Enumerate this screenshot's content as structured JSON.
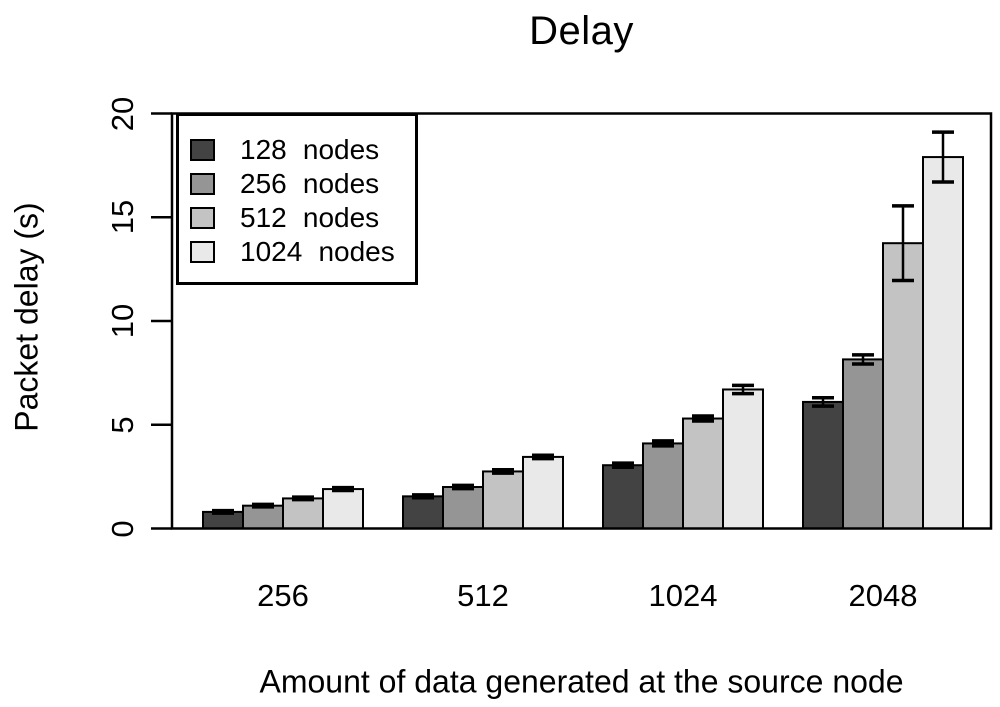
{
  "title": "Delay",
  "axes": {
    "y_label": "Packet delay (s)",
    "x_label": "Amount of data generated at the source node"
  },
  "legend": {
    "items": [
      {
        "label": "128 nodes",
        "color": "#434343"
      },
      {
        "label": "256 nodes",
        "color": "#959595"
      },
      {
        "label": "512 nodes",
        "color": "#c3c3c3"
      },
      {
        "label": "1024 nodes",
        "color": "#e9e9e9"
      }
    ]
  },
  "chart_data": {
    "type": "bar",
    "title": "Delay",
    "xlabel": "Amount of data generated at the source node",
    "ylabel": "Packet delay (s)",
    "categories": [
      "256",
      "512",
      "1024",
      "2048"
    ],
    "series": [
      {
        "name": "128 nodes",
        "color": "#434343",
        "values": [
          0.8,
          1.55,
          3.05,
          6.1
        ],
        "errors": [
          0.06,
          0.07,
          0.1,
          0.2
        ]
      },
      {
        "name": "256 nodes",
        "color": "#959595",
        "values": [
          1.1,
          2.0,
          4.1,
          8.15
        ],
        "errors": [
          0.06,
          0.08,
          0.12,
          0.22
        ]
      },
      {
        "name": "512 nodes",
        "color": "#c3c3c3",
        "values": [
          1.45,
          2.75,
          5.3,
          13.75
        ],
        "errors": [
          0.06,
          0.08,
          0.12,
          1.8
        ]
      },
      {
        "name": "1024 nodes",
        "color": "#e9e9e9",
        "values": [
          1.9,
          3.45,
          6.7,
          17.9
        ],
        "errors": [
          0.07,
          0.08,
          0.2,
          1.2
        ]
      }
    ],
    "ylim": [
      0,
      20
    ],
    "yticks": [
      0,
      5,
      10,
      15,
      20
    ],
    "grid": false,
    "error_bars": true,
    "legend_position": "top-left",
    "bar_outline_color": "#000000",
    "axis_color": "#000000"
  }
}
